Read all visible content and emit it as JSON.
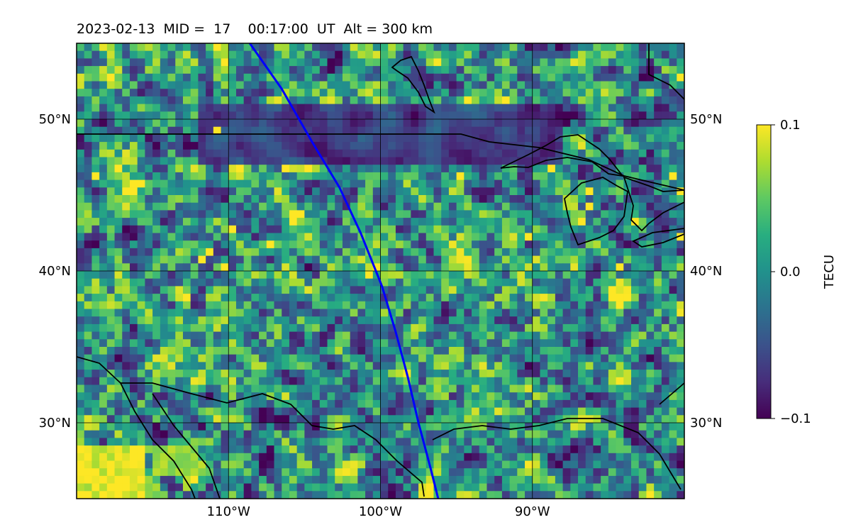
{
  "chart_data": {
    "type": "heatmap",
    "title": "2023-02-13  MID =  17    00:17:00  UT  Alt = 300 km",
    "projection": "map",
    "lon_range": [
      -120,
      -80
    ],
    "lat_range": [
      25,
      55
    ],
    "lon_ticks": [
      -110,
      -100,
      -90
    ],
    "lon_tick_labels": [
      "110°W",
      "100°W",
      "90°W"
    ],
    "lat_ticks": [
      30,
      40,
      50
    ],
    "lat_tick_labels": [
      "30°N",
      "40°N",
      "50°N"
    ],
    "grid": true,
    "colormap": "viridis",
    "colorbar": {
      "label": "TECU",
      "min": -0.1,
      "max": 0.1,
      "ticks": [
        0.1,
        0.0,
        -0.1
      ],
      "tick_labels": [
        "0.1",
        "0.0",
        "−0.1"
      ]
    },
    "annotations": [
      {
        "name": "satellite-track",
        "color": "#0000ff",
        "points": [
          [
            -108.6,
            55
          ],
          [
            -106.5,
            52
          ],
          [
            -104.5,
            48.5
          ],
          [
            -102.7,
            45.5
          ],
          [
            -101.3,
            42.5
          ],
          [
            -99.9,
            39
          ],
          [
            -99,
            36
          ],
          [
            -98.2,
            33
          ],
          [
            -97.5,
            30
          ],
          [
            -96.7,
            27
          ],
          [
            -96.2,
            25
          ]
        ]
      }
    ],
    "notable_regions": [
      {
        "description": "high TEC",
        "lon_range": [
          -120,
          -115.5
        ],
        "lat_range": [
          25,
          28.5
        ],
        "level": 0.1
      },
      {
        "description": "high TEC",
        "lon_range": [
          -115,
          -112
        ],
        "lat_range": [
          26.5,
          28.5
        ],
        "level": 0.07
      },
      {
        "description": "low TEC band",
        "lon_range": [
          -112,
          -88
        ],
        "lat_range": [
          47,
          51
        ],
        "level": -0.07
      }
    ]
  }
}
